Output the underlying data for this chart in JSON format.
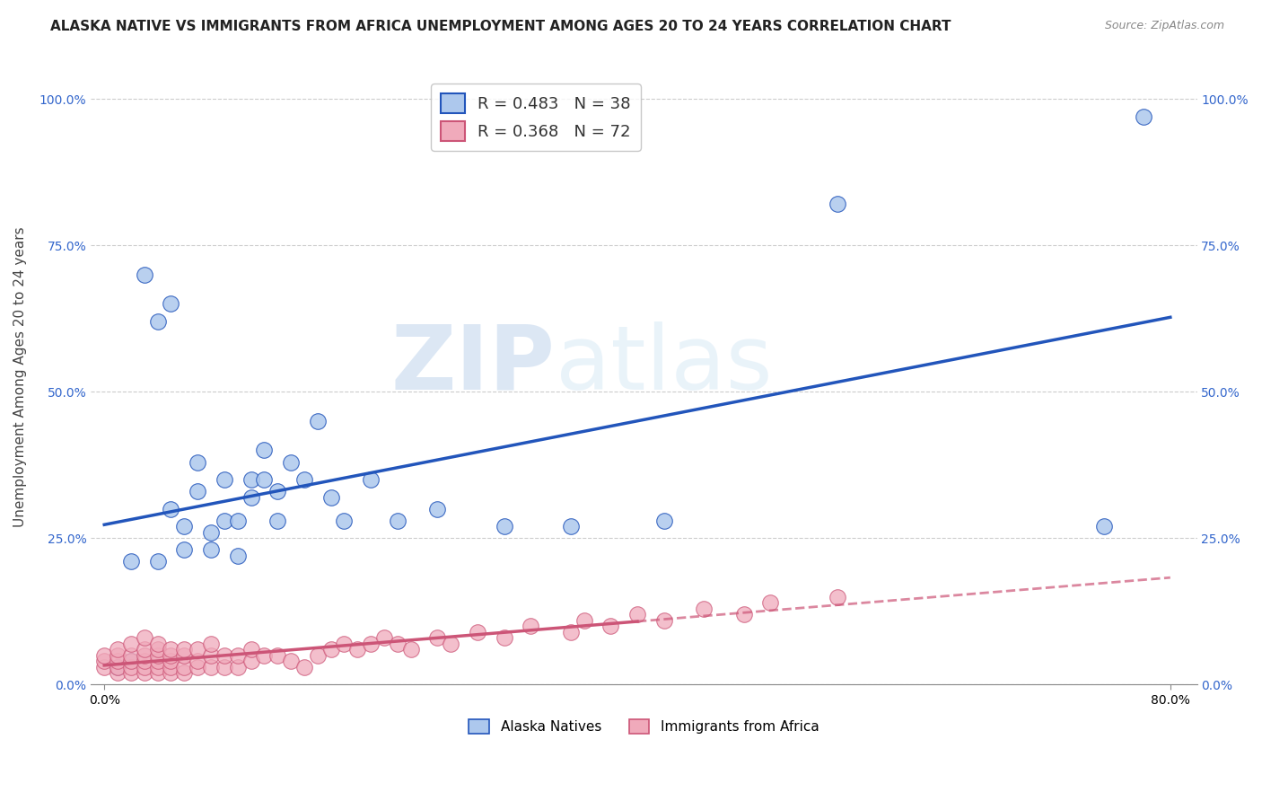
{
  "title": "ALASKA NATIVE VS IMMIGRANTS FROM AFRICA UNEMPLOYMENT AMONG AGES 20 TO 24 YEARS CORRELATION CHART",
  "source": "Source: ZipAtlas.com",
  "ylabel": "Unemployment Among Ages 20 to 24 years",
  "xlim": [
    0.0,
    0.8
  ],
  "ylim": [
    0.0,
    1.05
  ],
  "alaska_R": 0.483,
  "alaska_N": 38,
  "africa_R": 0.368,
  "africa_N": 72,
  "alaska_color": "#adc8ed",
  "alaska_line_color": "#2255bb",
  "africa_color": "#f0aabb",
  "africa_line_color": "#cc5577",
  "alaska_x": [
    0.01,
    0.02,
    0.02,
    0.03,
    0.04,
    0.04,
    0.05,
    0.05,
    0.06,
    0.06,
    0.07,
    0.07,
    0.08,
    0.08,
    0.09,
    0.09,
    0.1,
    0.1,
    0.11,
    0.11,
    0.12,
    0.12,
    0.13,
    0.13,
    0.14,
    0.15,
    0.16,
    0.17,
    0.18,
    0.2,
    0.22,
    0.25,
    0.3,
    0.35,
    0.42,
    0.55,
    0.75,
    0.78
  ],
  "alaska_y": [
    0.03,
    0.21,
    0.04,
    0.7,
    0.62,
    0.21,
    0.65,
    0.3,
    0.27,
    0.23,
    0.38,
    0.33,
    0.26,
    0.23,
    0.35,
    0.28,
    0.28,
    0.22,
    0.35,
    0.32,
    0.35,
    0.4,
    0.33,
    0.28,
    0.38,
    0.35,
    0.45,
    0.32,
    0.28,
    0.35,
    0.28,
    0.3,
    0.27,
    0.27,
    0.28,
    0.82,
    0.27,
    0.97
  ],
  "africa_x": [
    0.0,
    0.0,
    0.0,
    0.01,
    0.01,
    0.01,
    0.01,
    0.01,
    0.02,
    0.02,
    0.02,
    0.02,
    0.02,
    0.03,
    0.03,
    0.03,
    0.03,
    0.03,
    0.03,
    0.04,
    0.04,
    0.04,
    0.04,
    0.04,
    0.04,
    0.05,
    0.05,
    0.05,
    0.05,
    0.05,
    0.06,
    0.06,
    0.06,
    0.06,
    0.07,
    0.07,
    0.07,
    0.08,
    0.08,
    0.08,
    0.09,
    0.09,
    0.1,
    0.1,
    0.11,
    0.11,
    0.12,
    0.13,
    0.14,
    0.15,
    0.16,
    0.17,
    0.18,
    0.19,
    0.2,
    0.21,
    0.22,
    0.23,
    0.25,
    0.26,
    0.28,
    0.3,
    0.32,
    0.35,
    0.36,
    0.38,
    0.4,
    0.42,
    0.45,
    0.48,
    0.5,
    0.55
  ],
  "africa_y": [
    0.03,
    0.04,
    0.05,
    0.02,
    0.03,
    0.04,
    0.05,
    0.06,
    0.02,
    0.03,
    0.04,
    0.05,
    0.07,
    0.02,
    0.03,
    0.04,
    0.05,
    0.06,
    0.08,
    0.02,
    0.03,
    0.04,
    0.05,
    0.06,
    0.07,
    0.02,
    0.03,
    0.04,
    0.05,
    0.06,
    0.02,
    0.03,
    0.05,
    0.06,
    0.03,
    0.04,
    0.06,
    0.03,
    0.05,
    0.07,
    0.03,
    0.05,
    0.03,
    0.05,
    0.04,
    0.06,
    0.05,
    0.05,
    0.04,
    0.03,
    0.05,
    0.06,
    0.07,
    0.06,
    0.07,
    0.08,
    0.07,
    0.06,
    0.08,
    0.07,
    0.09,
    0.08,
    0.1,
    0.09,
    0.11,
    0.1,
    0.12,
    0.11,
    0.13,
    0.12,
    0.14,
    0.15
  ],
  "africa_line_solid_end": 0.4,
  "africa_line_dashed_end": 0.8,
  "background_color": "#ffffff",
  "grid_color": "#cccccc",
  "title_fontsize": 11,
  "axis_label_fontsize": 11,
  "tick_fontsize": 10,
  "legend_fontsize": 13
}
